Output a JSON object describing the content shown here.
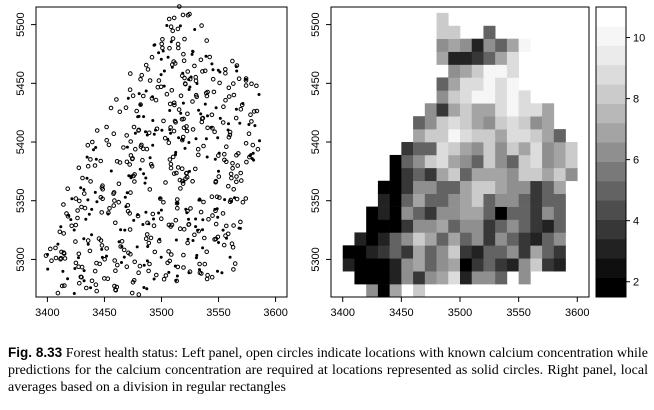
{
  "caption": {
    "label": "Fig. 8.33",
    "text": "Forest health status: Left panel, open circles indicate locations with known calcium concentration while predictions for the calcium concentration are required at locations represented as solid circles. Right panel, local averages based on a division in regular rectangles"
  },
  "chart_data": [
    {
      "type": "scatter",
      "panel": "left",
      "title": "",
      "xlabel": "",
      "ylabel": "",
      "xlim": [
        3390,
        3610
      ],
      "ylim": [
        5268,
        5515
      ],
      "x_ticks": [
        "3400",
        "3450",
        "3500",
        "3550",
        "3600"
      ],
      "y_ticks": [
        "5300",
        "5350",
        "5400",
        "5450",
        "5500"
      ],
      "region": [
        [
          5275,
          3405,
          3492
        ],
        [
          5285,
          3400,
          3555
        ],
        [
          5295,
          3398,
          3565
        ],
        [
          5305,
          3398,
          3568
        ],
        [
          5315,
          3402,
          3570
        ],
        [
          5325,
          3404,
          3570
        ],
        [
          5335,
          3406,
          3570
        ],
        [
          5345,
          3408,
          3572
        ],
        [
          5355,
          3412,
          3574
        ],
        [
          5365,
          3416,
          3576
        ],
        [
          5375,
          3420,
          3578
        ],
        [
          5385,
          3428,
          3584
        ],
        [
          5395,
          3434,
          3590
        ],
        [
          5405,
          3440,
          3592
        ],
        [
          5415,
          3446,
          3592
        ],
        [
          5425,
          3452,
          3592
        ],
        [
          5435,
          3460,
          3590
        ],
        [
          5445,
          3466,
          3586
        ],
        [
          5455,
          3472,
          3578
        ],
        [
          5465,
          3478,
          3570
        ],
        [
          5475,
          3484,
          3556
        ],
        [
          5485,
          3490,
          3546
        ],
        [
          5495,
          3496,
          3536
        ],
        [
          5505,
          3502,
          3526
        ],
        [
          5512,
          3510,
          3516
        ]
      ],
      "series": [
        {
          "name": "known calcium concentration",
          "marker": "open circle",
          "density": 0.5
        },
        {
          "name": "prediction locations",
          "marker": "solid circle",
          "density": 0.3
        }
      ]
    },
    {
      "type": "heatmap",
      "panel": "right",
      "title": "",
      "xlim": [
        3390,
        3610
      ],
      "ylim": [
        5268,
        5515
      ],
      "x_ticks": [
        "3400",
        "3450",
        "3500",
        "3550",
        "3600"
      ],
      "y_ticks": [
        "5300",
        "5350",
        "5400",
        "5450",
        "5500"
      ],
      "grid": {
        "x0": 3400,
        "y0": 5268,
        "dx": 10,
        "dy": 11,
        "cols": 21,
        "rows": 22
      },
      "rows_bottom_to_top": [
        ". . 6 1 7 . 8 . . . . . . . . . . . . . .",
        ". 1 0 0 3 6 4 6 7 9 3 6 6 5 . 6 . . . . .",
        "3 1 2 2 3 6 7 5 6 7 2 4 5 4 3 6 8 4 3 . .",
        "2 2 3 4 5 4 7 5 6 8 4 3 5 5 6 4 7 5 4 . .",
        ". 3 2 3 5 6 8 7 5 7 5 6 4 6 5 4 3 5 6 . .",
        ". . 2 1 2 4 6 6 7 5 6 6 4 5 6 5 4 3 5 . .",
        ". . 2 3 1 6 5 4 6 6 7 7 5 2 5 5 4 6 5 . .",
        ". . . 3 2 5 7 5 5 6 7 8 5 6 6 5 4 5 5 . .",
        ". . . 2 1 4 6 6 5 5 7 8 8 7 6 6 4 5 7 . .",
        ". . . . 2 4 5 4 7 8 5 7 7 7 6 8 8 7 8 6 .",
        ". . . . 2 5 6 8 9 7 6 5 8 6 5 8 9 6 7 8 .",
        ". . . . . 4 5 5 9 8 7 6 8 6 8 7 9 6 7 8 .",
        ". . . . . . 7 8 8 10 9 8 8 7 9 9 8 7 5 . .",
        ". . . . . . 5 6 8 9 8 7 6 8 9 8 6 7 . . .",
        ". . . . . . . 6 4 7 8 7 7 9 10 9 9 7 . . .",
        ". . . . . . . . 6 8 9 10 10 9 10 9 . . . . .",
        ". . . . . . . . 5 7 9 9 10 9 10 . . . . . .",
        ". . . . . . . . . 6 7 8 10 10 9 . . . . . .",
        ". . . . . . . . 7 3 3 4 5 7 9 . . . . . .",
        ". . . . . . . . 6 7 6 3 6 5 7 10 . . . . .",
        ". . . . . . . . 8 8 . . 5 . . . . . . . .",
        ". . . . . . . . 8 . . . . . . . . . . . ."
      ],
      "legend": {
        "type": "colorbar",
        "min": 1.5,
        "max": 11,
        "ticks": [
          "2",
          "4",
          "6",
          "8",
          "10"
        ],
        "colors": [
          "#000000",
          "#0f0f0f",
          "#222222",
          "#373737",
          "#4d4d4d",
          "#636363",
          "#797979",
          "#8f8f8f",
          "#a4a4a4",
          "#b8b8b8",
          "#cbcbcb",
          "#dcdcdc",
          "#ebebeb",
          "#f6f6f6",
          "#ffffff"
        ]
      }
    }
  ]
}
